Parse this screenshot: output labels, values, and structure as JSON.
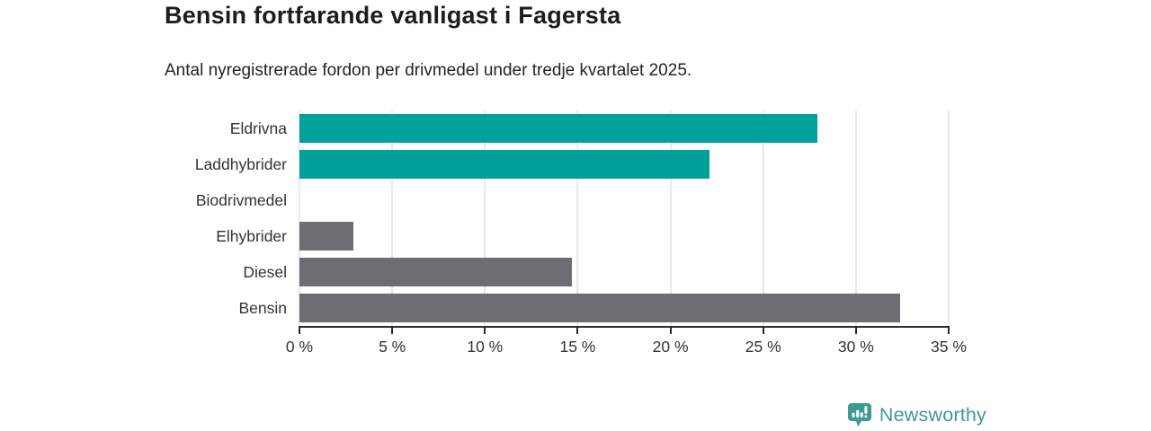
{
  "header": {
    "title": "Bensin fortfarande vanligast i Fagersta",
    "subtitle": "Antal nyregistrerade fordon per drivmedel under tredje kvartalet 2025."
  },
  "chart_data": {
    "type": "bar",
    "orientation": "horizontal",
    "title": "Bensin fortfarande vanligast i Fagersta",
    "subtitle": "Antal nyregistrerade fordon per drivmedel under tredje kvartalet 2025.",
    "categories": [
      "Eldrivna",
      "Laddhybrider",
      "Biodrivmedel",
      "Elhybrider",
      "Diesel",
      "Bensin"
    ],
    "values": [
      27.9,
      22.1,
      0,
      2.9,
      14.7,
      32.4
    ],
    "bar_colors": [
      "#00a19a",
      "#00a19a",
      "#6d6d73",
      "#6d6d73",
      "#6d6d73",
      "#6d6d73"
    ],
    "xlabel": "",
    "ylabel": "",
    "xlim": [
      0,
      35
    ],
    "xtick_step": 5,
    "xtick_labels": [
      "0 %",
      "5 %",
      "10 %",
      "15 %",
      "20 %",
      "25 %",
      "30 %",
      "35 %"
    ],
    "grid": true,
    "legend": false,
    "value_unit": "%"
  },
  "footer": {
    "brand": "Newsworthy"
  },
  "colors": {
    "accent_teal": "#00a19a",
    "neutral_gray": "#6d6d73",
    "brand_teal": "#3e9b94",
    "gridline": "#e8e8e8",
    "axis": "#2b2b2b"
  }
}
